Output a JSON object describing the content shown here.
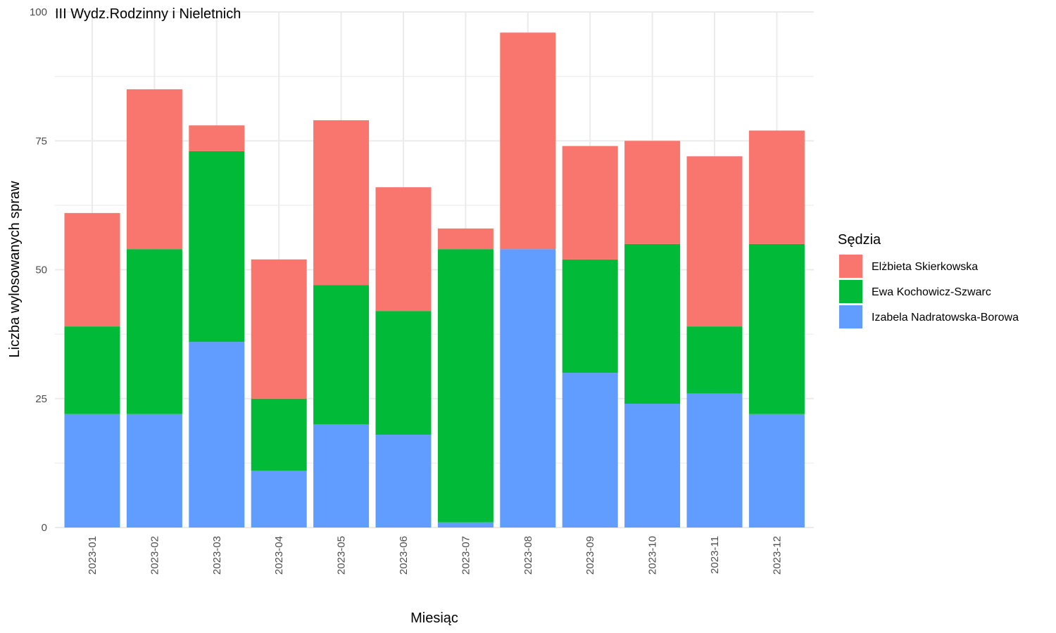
{
  "chart_data": {
    "type": "bar",
    "stacked": true,
    "title": "III Wydz.Rodzinny i Nieletnich",
    "xlabel": "Miesiąc",
    "ylabel": "Liczba wylosowanych spraw",
    "ylim": [
      0,
      100
    ],
    "yticks": [
      "0",
      "25",
      "50",
      "75",
      "100"
    ],
    "categories": [
      "2023-01",
      "2023-02",
      "2023-03",
      "2023-04",
      "2023-05",
      "2023-06",
      "2023-07",
      "2023-08",
      "2023-09",
      "2023-10",
      "2023-11",
      "2023-12"
    ],
    "series": [
      {
        "name": "Izabela Nadratowska-Borowa",
        "color": "#619CFF",
        "values": [
          22,
          22,
          36,
          11,
          20,
          18,
          1,
          54,
          30,
          24,
          26,
          22
        ]
      },
      {
        "name": "Ewa Kochowicz-Szwarc",
        "color": "#00BA38",
        "values": [
          17,
          32,
          37,
          14,
          27,
          24,
          53,
          0,
          22,
          31,
          13,
          33
        ]
      },
      {
        "name": "Elżbieta Skierkowska",
        "color": "#F8766D",
        "values": [
          22,
          31,
          5,
          27,
          32,
          24,
          4,
          42,
          22,
          20,
          33,
          22
        ]
      }
    ],
    "grid": true,
    "legend": {
      "title": "Sędzia",
      "position": "right",
      "order": [
        "Elżbieta Skierkowska",
        "Ewa Kochowicz-Szwarc",
        "Izabela Nadratowska-Borowa"
      ]
    }
  }
}
